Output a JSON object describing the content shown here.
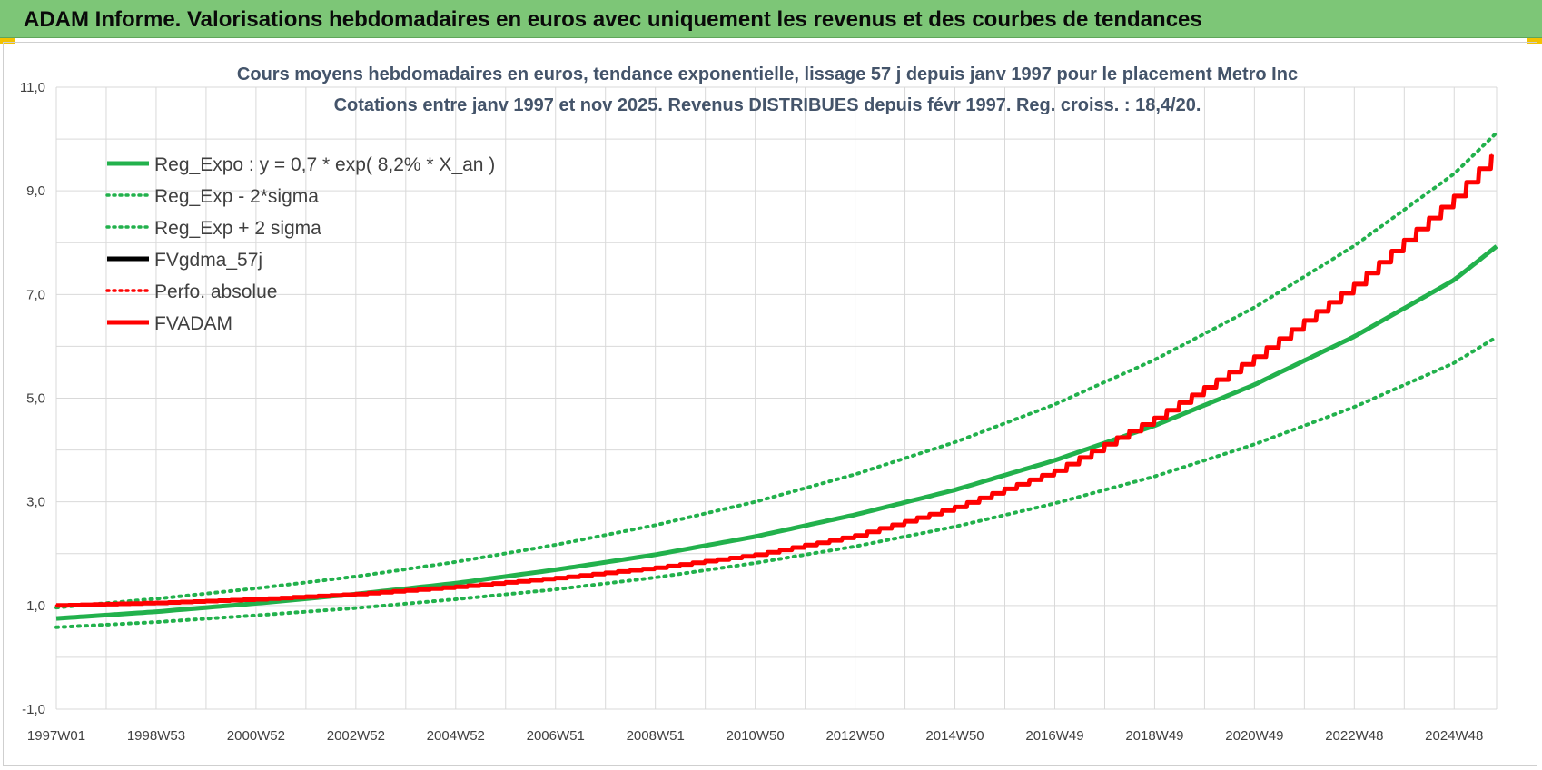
{
  "banner": {
    "title": "ADAM Informe. Valorisations hebdomadaires en euros avec uniquement les revenus et des courbes de tendances"
  },
  "colors": {
    "banner_bg": "#7dc677",
    "trend_green": "#22b14c",
    "fv_red": "#ff0000",
    "fv_black": "#000000",
    "grid": "#d9d9d9",
    "title_text": "#44546a"
  },
  "chart_data": {
    "type": "line",
    "title_line1": "Cours moyens hebdomadaires en euros, tendance exponentielle, lissage 57 j depuis janv 1997  pour le  placement Metro Inc",
    "title_line2": "Cotations entre janv 1997 et nov 2025. Revenus  DISTRIBUES depuis févr 1997. Reg. croiss. : 18,4/20.",
    "xlabel": "",
    "ylabel": "",
    "ylim": [
      -1.0,
      11.0
    ],
    "xlim": [
      1997.0,
      2025.85
    ],
    "y_ticks": [
      "11,0",
      "9,0",
      "7,0",
      "5,0",
      "3,0",
      "1,0",
      "-1,0"
    ],
    "y_tick_values": [
      11,
      9,
      7,
      5,
      3,
      1,
      -1
    ],
    "x_ticks": [
      "1997W01",
      "1998W53",
      "2000W52",
      "2002W52",
      "2004W52",
      "2006W51",
      "2008W51",
      "2010W50",
      "2012W50",
      "2014W50",
      "2016W49",
      "2018W49",
      "2020W49",
      "2022W48",
      "2024W48"
    ],
    "x_tick_values": [
      1997,
      1999,
      2001,
      2003,
      2005,
      2007,
      2009,
      2011,
      2013,
      2015,
      2017,
      2019,
      2021,
      2023,
      2025
    ],
    "grid": true,
    "legend_placement": "top-left",
    "series": [
      {
        "name": "Reg_Expo : y = 0,7 * exp( 8,2% *  X_an )",
        "style": "solid",
        "color": "#22b14c",
        "x": [
          1997,
          1999,
          2001,
          2003,
          2005,
          2007,
          2009,
          2011,
          2013,
          2015,
          2017,
          2019,
          2021,
          2023,
          2025,
          2025.85
        ],
        "y": [
          0.75,
          0.88,
          1.04,
          1.22,
          1.43,
          1.69,
          1.98,
          2.33,
          2.75,
          3.23,
          3.8,
          4.47,
          5.26,
          6.19,
          7.28,
          7.93
        ]
      },
      {
        "name": "Reg_Exp - 2*sigma",
        "style": "dotted",
        "color": "#22b14c",
        "x": [
          1997,
          1999,
          2001,
          2003,
          2005,
          2007,
          2009,
          2011,
          2013,
          2015,
          2017,
          2019,
          2021,
          2023,
          2025,
          2025.85
        ],
        "y": [
          0.58,
          0.68,
          0.81,
          0.95,
          1.12,
          1.31,
          1.54,
          1.82,
          2.14,
          2.52,
          2.97,
          3.49,
          4.11,
          4.83,
          5.68,
          6.18
        ]
      },
      {
        "name": "Reg_Exp + 2 sigma",
        "style": "dotted",
        "color": "#22b14c",
        "x": [
          1997,
          1999,
          2001,
          2003,
          2005,
          2007,
          2009,
          2011,
          2013,
          2015,
          2017,
          2019,
          2021,
          2023,
          2025,
          2025.85
        ],
        "y": [
          0.96,
          1.13,
          1.33,
          1.56,
          1.84,
          2.17,
          2.55,
          3.0,
          3.53,
          4.15,
          4.88,
          5.74,
          6.75,
          7.94,
          9.33,
          10.12
        ]
      },
      {
        "name": "FVgdma_57j",
        "style": "solid",
        "color": "#000000",
        "x": [
          1997,
          1999,
          2001,
          2003,
          2005,
          2007,
          2009,
          2011,
          2013,
          2015,
          2017,
          2019,
          2021,
          2023,
          2025,
          2025.85
        ],
        "y": [
          1.0,
          1.05,
          1.12,
          1.22,
          1.36,
          1.53,
          1.73,
          1.98,
          2.35,
          2.9,
          3.6,
          4.62,
          5.8,
          7.2,
          8.9,
          9.8
        ]
      },
      {
        "name": "Perfo. absolue",
        "style": "dotted",
        "color": "#ff0000",
        "x": [
          1997,
          1999,
          2001,
          2003,
          2005,
          2007,
          2009,
          2011,
          2013,
          2015,
          2017,
          2019,
          2021,
          2023,
          2025,
          2025.85
        ],
        "y": [
          1.0,
          1.05,
          1.12,
          1.22,
          1.36,
          1.53,
          1.73,
          1.98,
          2.35,
          2.9,
          3.6,
          4.62,
          5.8,
          7.2,
          8.9,
          9.8
        ]
      },
      {
        "name": "FVADAM",
        "style": "solid",
        "color": "#ff0000",
        "x": [
          1997,
          1999,
          2001,
          2003,
          2005,
          2007,
          2009,
          2011,
          2013,
          2015,
          2017,
          2019,
          2021,
          2023,
          2025,
          2025.85
        ],
        "y": [
          1.0,
          1.05,
          1.12,
          1.22,
          1.36,
          1.53,
          1.73,
          1.98,
          2.35,
          2.9,
          3.6,
          4.62,
          5.8,
          7.2,
          8.9,
          9.8
        ]
      }
    ]
  }
}
